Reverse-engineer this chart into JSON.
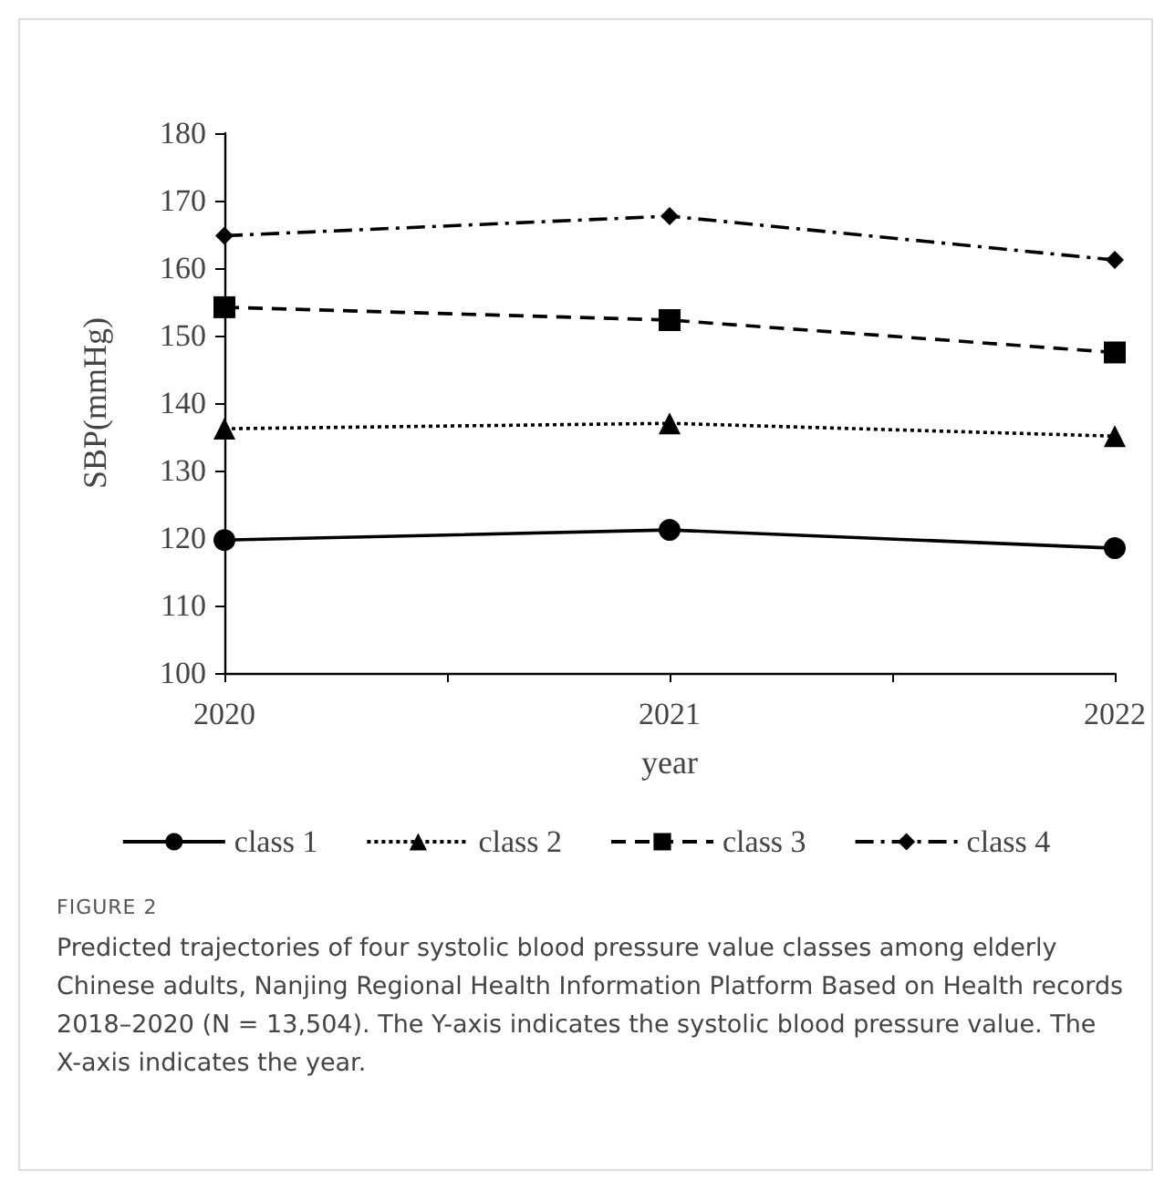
{
  "chart_data": {
    "type": "line",
    "x": [
      2020,
      2021,
      2022
    ],
    "series": [
      {
        "name": "class 1",
        "color": "#000000",
        "marker": "circle",
        "line_style": "solid",
        "values": [
          119.7,
          121.2,
          118.5
        ]
      },
      {
        "name": "class 2",
        "color": "#000000",
        "marker": "triangle",
        "line_style": "dotted",
        "values": [
          136.2,
          137.0,
          135.1
        ]
      },
      {
        "name": "class 3",
        "color": "#000000",
        "marker": "square",
        "line_style": "dashed",
        "values": [
          154.2,
          152.3,
          147.5
        ]
      },
      {
        "name": "class 4",
        "color": "#000000",
        "marker": "diamond",
        "line_style": "dashdot",
        "values": [
          164.8,
          167.7,
          161.2
        ]
      }
    ],
    "xlabel": "year",
    "ylabel": "SBP(mmHg)",
    "xlim": [
      2020,
      2022
    ],
    "xticks": [
      2020,
      {
        "value": 2020.5,
        "label": null
      },
      2021,
      {
        "value": 2021.5,
        "label": null
      },
      2022
    ],
    "ylim": [
      100,
      180
    ],
    "yticks": [
      100,
      110,
      120,
      130,
      140,
      150,
      160,
      170,
      180
    ],
    "grid": false,
    "legend": "bottom",
    "annotations": [
      "FIGURE 2",
      "Predicted trajectories of four systolic blood pressure value classes among elderly Chinese adults, Nanjing Regional Health Information Platform Based on Health records 2018–2020 (N = 13,504). The Y-axis indicates the systolic blood pressure value. The X-axis indicates the year."
    ]
  }
}
